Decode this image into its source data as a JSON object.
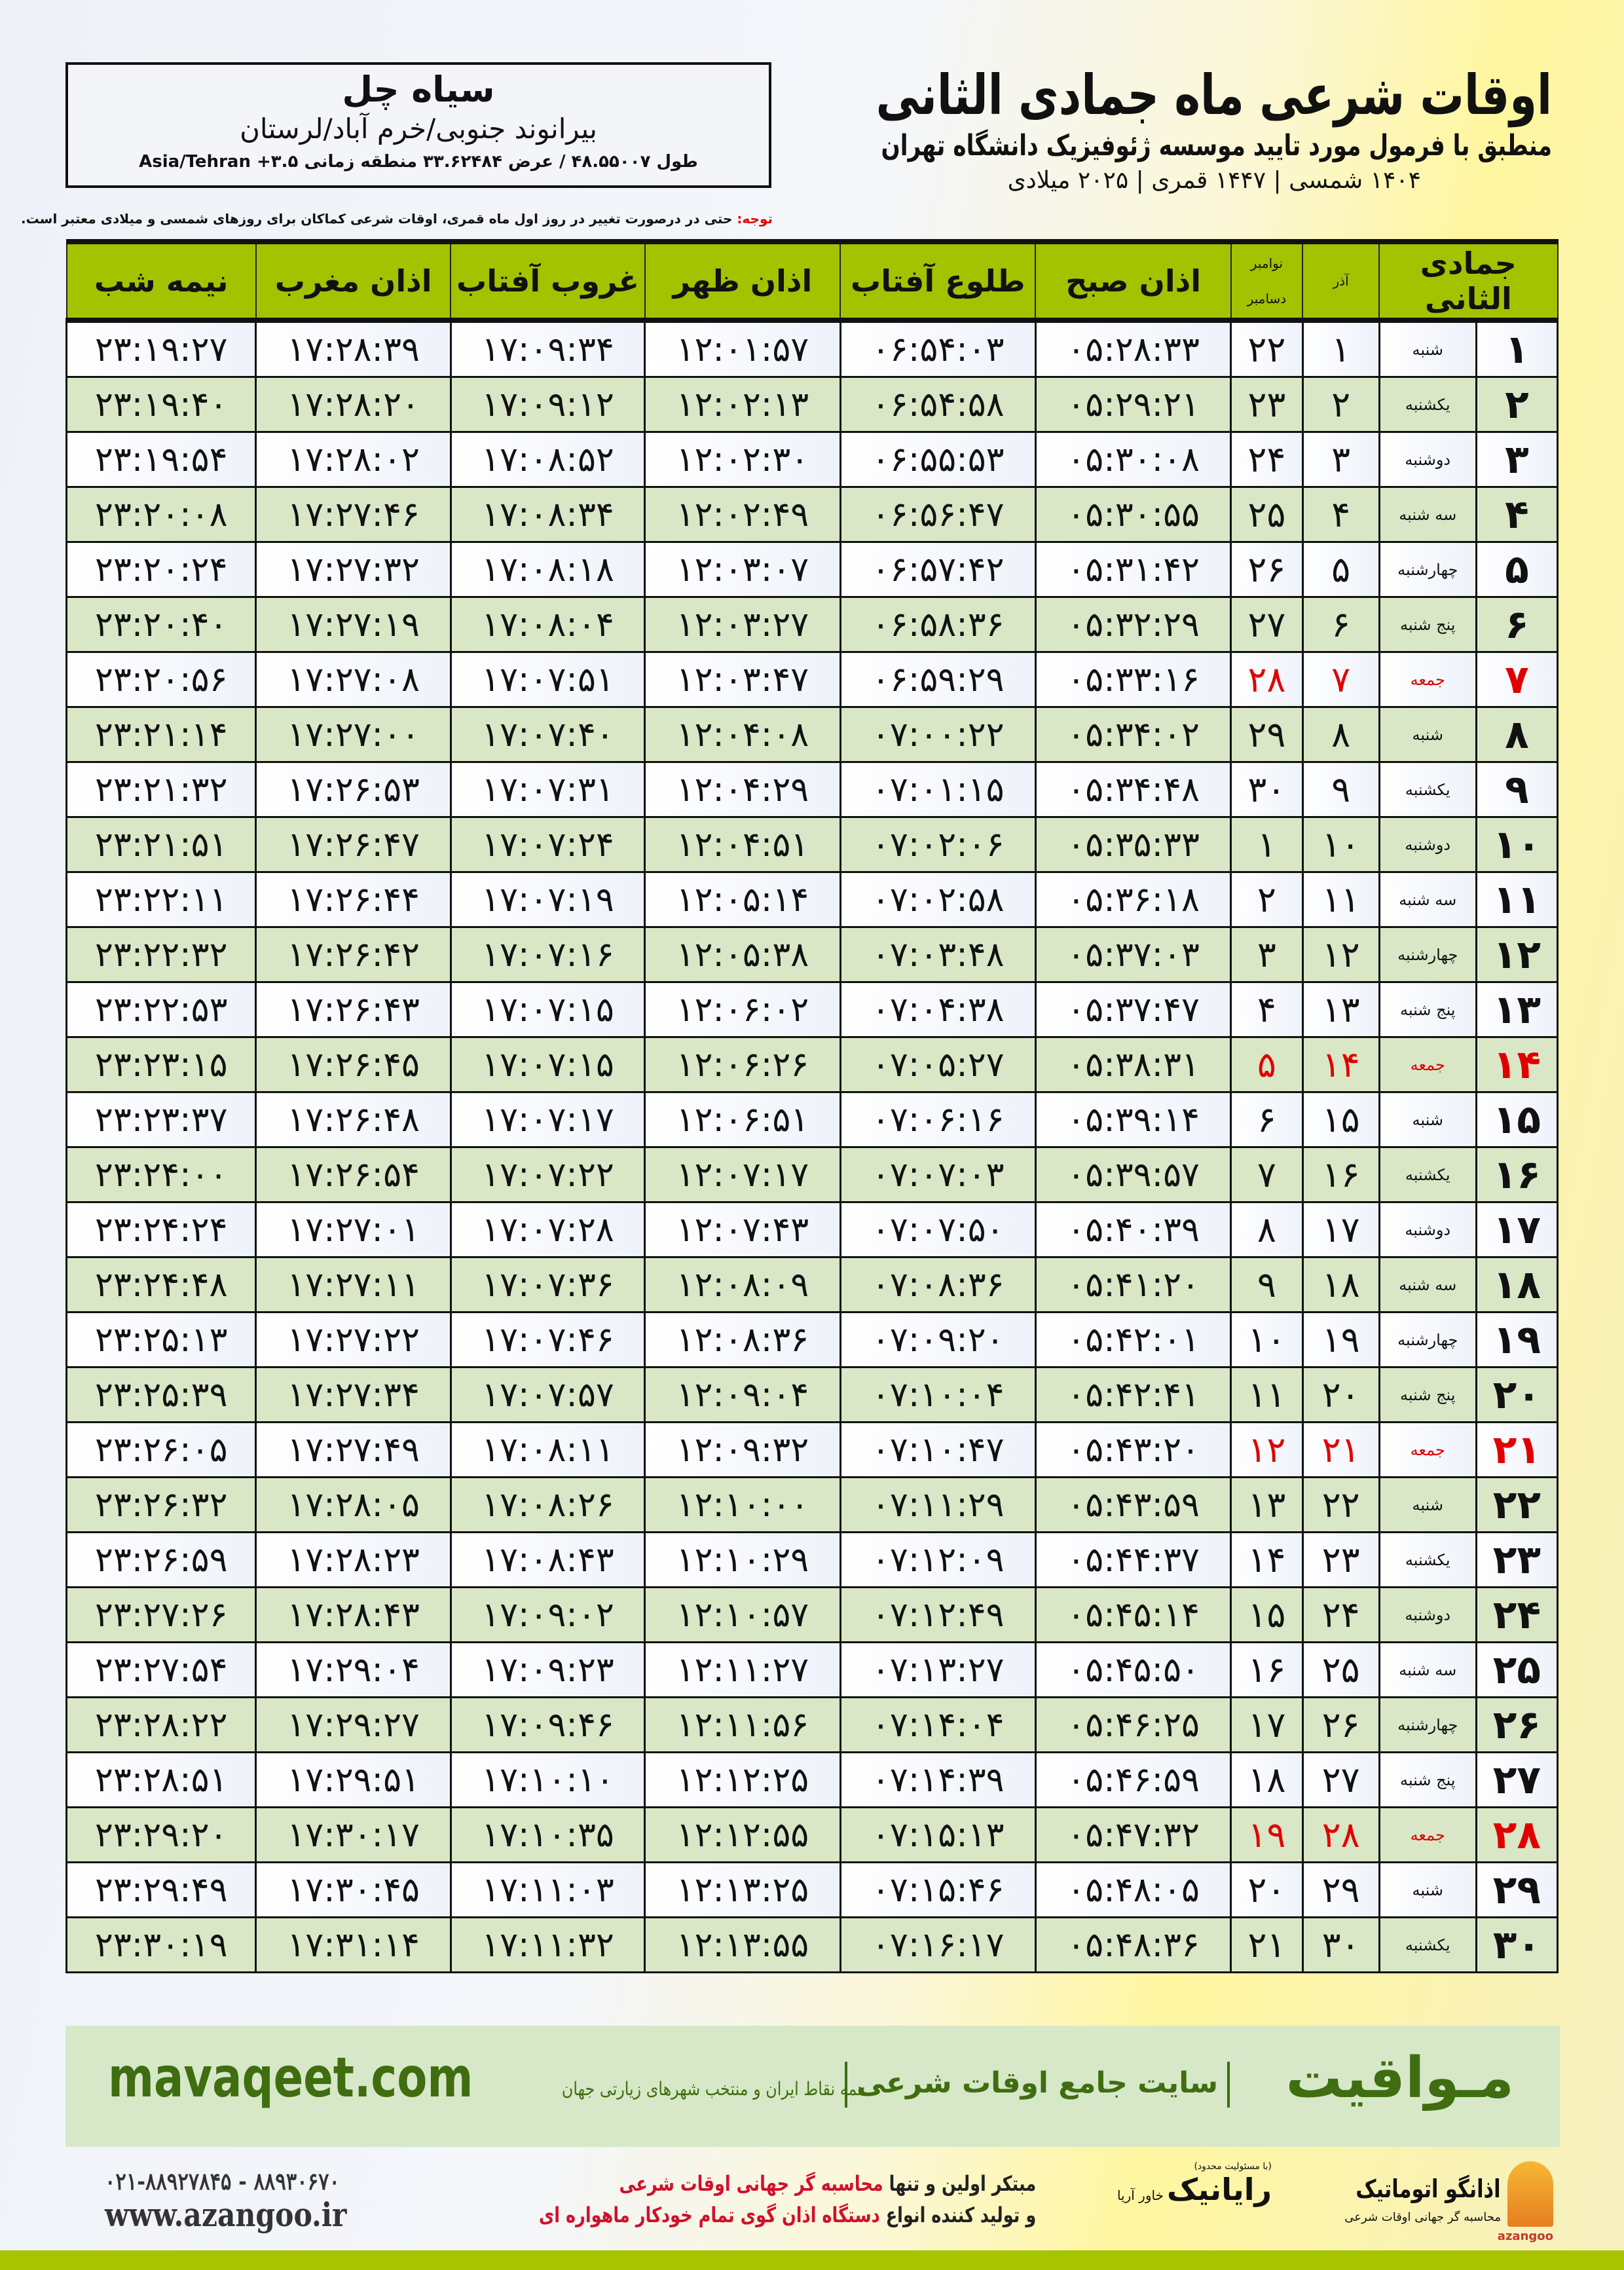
{
  "info": {
    "city": "سیاه چل",
    "region": "بیرانوند جنوبی/خرم آباد/لرستان",
    "coords": "طول ۴۸.۵۵۰۰۷ / عرض ۳۳.۶۲۴۸۴ منطقه زمانی ۳.۵+ Asia/Tehran"
  },
  "title": {
    "main": "اوقات شرعی ماه جمادی الثانی",
    "sub": "منطبق با فرمول مورد تایید موسسه ژئوفیزیک دانشگاه تهران",
    "years": "۱۴۰۴ شمسی | ۱۴۴۷ قمری | ۲۰۲۵ میلادی"
  },
  "note": {
    "label": "توجه:",
    "text": " حتی در درصورت تغییر در روز اول ماه قمری، اوقات شرعی کماکان برای روزهای شمسی و میلادی معتبر است."
  },
  "table": {
    "headers": {
      "month": "جمادی الثانی",
      "azar": "آذر",
      "november": "نوامبر",
      "december": "دسامبر",
      "sobh": "اذان صبح",
      "tolu": "طلوع آفتاب",
      "zohr": "اذان ظهر",
      "ghorub": "غروب آفتاب",
      "maghrib": "اذان مغرب",
      "nimeshab": "نیمه شب"
    },
    "holiday_color": "#e00000",
    "header_color": "#a3c200",
    "rows": [
      {
        "day": "۱",
        "weekday": "شنبه",
        "azar": "۱",
        "greg": "۲۲",
        "sobh": "۰۵:۲۸:۳۳",
        "tolu": "۰۶:۵۴:۰۳",
        "zohr": "۱۲:۰۱:۵۷",
        "ghorub": "۱۷:۰۹:۳۴",
        "maghrib": "۱۷:۲۸:۳۹",
        "nimeshab": "۲۳:۱۹:۲۷"
      },
      {
        "day": "۲",
        "weekday": "یکشنبه",
        "azar": "۲",
        "greg": "۲۳",
        "sobh": "۰۵:۲۹:۲۱",
        "tolu": "۰۶:۵۴:۵۸",
        "zohr": "۱۲:۰۲:۱۳",
        "ghorub": "۱۷:۰۹:۱۲",
        "maghrib": "۱۷:۲۸:۲۰",
        "nimeshab": "۲۳:۱۹:۴۰"
      },
      {
        "day": "۳",
        "weekday": "دوشنبه",
        "azar": "۳",
        "greg": "۲۴",
        "sobh": "۰۵:۳۰:۰۸",
        "tolu": "۰۶:۵۵:۵۳",
        "zohr": "۱۲:۰۲:۳۰",
        "ghorub": "۱۷:۰۸:۵۲",
        "maghrib": "۱۷:۲۸:۰۲",
        "nimeshab": "۲۳:۱۹:۵۴"
      },
      {
        "day": "۴",
        "weekday": "سه شنبه",
        "azar": "۴",
        "greg": "۲۵",
        "sobh": "۰۵:۳۰:۵۵",
        "tolu": "۰۶:۵۶:۴۷",
        "zohr": "۱۲:۰۲:۴۹",
        "ghorub": "۱۷:۰۸:۳۴",
        "maghrib": "۱۷:۲۷:۴۶",
        "nimeshab": "۲۳:۲۰:۰۸"
      },
      {
        "day": "۵",
        "weekday": "چهارشنبه",
        "azar": "۵",
        "greg": "۲۶",
        "sobh": "۰۵:۳۱:۴۲",
        "tolu": "۰۶:۵۷:۴۲",
        "zohr": "۱۲:۰۳:۰۷",
        "ghorub": "۱۷:۰۸:۱۸",
        "maghrib": "۱۷:۲۷:۳۲",
        "nimeshab": "۲۳:۲۰:۲۴"
      },
      {
        "day": "۶",
        "weekday": "پنج شنبه",
        "azar": "۶",
        "greg": "۲۷",
        "sobh": "۰۵:۳۲:۲۹",
        "tolu": "۰۶:۵۸:۳۶",
        "zohr": "۱۲:۰۳:۲۷",
        "ghorub": "۱۷:۰۸:۰۴",
        "maghrib": "۱۷:۲۷:۱۹",
        "nimeshab": "۲۳:۲۰:۴۰"
      },
      {
        "day": "۷",
        "weekday": "جمعه",
        "azar": "۷",
        "greg": "۲۸",
        "sobh": "۰۵:۳۳:۱۶",
        "tolu": "۰۶:۵۹:۲۹",
        "zohr": "۱۲:۰۳:۴۷",
        "ghorub": "۱۷:۰۷:۵۱",
        "maghrib": "۱۷:۲۷:۰۸",
        "nimeshab": "۲۳:۲۰:۵۶",
        "holiday": true
      },
      {
        "day": "۸",
        "weekday": "شنبه",
        "azar": "۸",
        "greg": "۲۹",
        "sobh": "۰۵:۳۴:۰۲",
        "tolu": "۰۷:۰۰:۲۲",
        "zohr": "۱۲:۰۴:۰۸",
        "ghorub": "۱۷:۰۷:۴۰",
        "maghrib": "۱۷:۲۷:۰۰",
        "nimeshab": "۲۳:۲۱:۱۴"
      },
      {
        "day": "۹",
        "weekday": "یکشنبه",
        "azar": "۹",
        "greg": "۳۰",
        "sobh": "۰۵:۳۴:۴۸",
        "tolu": "۰۷:۰۱:۱۵",
        "zohr": "۱۲:۰۴:۲۹",
        "ghorub": "۱۷:۰۷:۳۱",
        "maghrib": "۱۷:۲۶:۵۳",
        "nimeshab": "۲۳:۲۱:۳۲"
      },
      {
        "day": "۱۰",
        "weekday": "دوشنبه",
        "azar": "۱۰",
        "greg": "۱",
        "sobh": "۰۵:۳۵:۳۳",
        "tolu": "۰۷:۰۲:۰۶",
        "zohr": "۱۲:۰۴:۵۱",
        "ghorub": "۱۷:۰۷:۲۴",
        "maghrib": "۱۷:۲۶:۴۷",
        "nimeshab": "۲۳:۲۱:۵۱"
      },
      {
        "day": "۱۱",
        "weekday": "سه شنبه",
        "azar": "۱۱",
        "greg": "۲",
        "sobh": "۰۵:۳۶:۱۸",
        "tolu": "۰۷:۰۲:۵۸",
        "zohr": "۱۲:۰۵:۱۴",
        "ghorub": "۱۷:۰۷:۱۹",
        "maghrib": "۱۷:۲۶:۴۴",
        "nimeshab": "۲۳:۲۲:۱۱"
      },
      {
        "day": "۱۲",
        "weekday": "چهارشنبه",
        "azar": "۱۲",
        "greg": "۳",
        "sobh": "۰۵:۳۷:۰۳",
        "tolu": "۰۷:۰۳:۴۸",
        "zohr": "۱۲:۰۵:۳۸",
        "ghorub": "۱۷:۰۷:۱۶",
        "maghrib": "۱۷:۲۶:۴۲",
        "nimeshab": "۲۳:۲۲:۳۲"
      },
      {
        "day": "۱۳",
        "weekday": "پنج شنبه",
        "azar": "۱۳",
        "greg": "۴",
        "sobh": "۰۵:۳۷:۴۷",
        "tolu": "۰۷:۰۴:۳۸",
        "zohr": "۱۲:۰۶:۰۲",
        "ghorub": "۱۷:۰۷:۱۵",
        "maghrib": "۱۷:۲۶:۴۳",
        "nimeshab": "۲۳:۲۲:۵۳"
      },
      {
        "day": "۱۴",
        "weekday": "جمعه",
        "azar": "۱۴",
        "greg": "۵",
        "sobh": "۰۵:۳۸:۳۱",
        "tolu": "۰۷:۰۵:۲۷",
        "zohr": "۱۲:۰۶:۲۶",
        "ghorub": "۱۷:۰۷:۱۵",
        "maghrib": "۱۷:۲۶:۴۵",
        "nimeshab": "۲۳:۲۳:۱۵",
        "holiday": true
      },
      {
        "day": "۱۵",
        "weekday": "شنبه",
        "azar": "۱۵",
        "greg": "۶",
        "sobh": "۰۵:۳۹:۱۴",
        "tolu": "۰۷:۰۶:۱۶",
        "zohr": "۱۲:۰۶:۵۱",
        "ghorub": "۱۷:۰۷:۱۷",
        "maghrib": "۱۷:۲۶:۴۸",
        "nimeshab": "۲۳:۲۳:۳۷"
      },
      {
        "day": "۱۶",
        "weekday": "یکشنبه",
        "azar": "۱۶",
        "greg": "۷",
        "sobh": "۰۵:۳۹:۵۷",
        "tolu": "۰۷:۰۷:۰۳",
        "zohr": "۱۲:۰۷:۱۷",
        "ghorub": "۱۷:۰۷:۲۲",
        "maghrib": "۱۷:۲۶:۵۴",
        "nimeshab": "۲۳:۲۴:۰۰"
      },
      {
        "day": "۱۷",
        "weekday": "دوشنبه",
        "azar": "۱۷",
        "greg": "۸",
        "sobh": "۰۵:۴۰:۳۹",
        "tolu": "۰۷:۰۷:۵۰",
        "zohr": "۱۲:۰۷:۴۳",
        "ghorub": "۱۷:۰۷:۲۸",
        "maghrib": "۱۷:۲۷:۰۱",
        "nimeshab": "۲۳:۲۴:۲۴"
      },
      {
        "day": "۱۸",
        "weekday": "سه شنبه",
        "azar": "۱۸",
        "greg": "۹",
        "sobh": "۰۵:۴۱:۲۰",
        "tolu": "۰۷:۰۸:۳۶",
        "zohr": "۱۲:۰۸:۰۹",
        "ghorub": "۱۷:۰۷:۳۶",
        "maghrib": "۱۷:۲۷:۱۱",
        "nimeshab": "۲۳:۲۴:۴۸"
      },
      {
        "day": "۱۹",
        "weekday": "چهارشنبه",
        "azar": "۱۹",
        "greg": "۱۰",
        "sobh": "۰۵:۴۲:۰۱",
        "tolu": "۰۷:۰۹:۲۰",
        "zohr": "۱۲:۰۸:۳۶",
        "ghorub": "۱۷:۰۷:۴۶",
        "maghrib": "۱۷:۲۷:۲۲",
        "nimeshab": "۲۳:۲۵:۱۳"
      },
      {
        "day": "۲۰",
        "weekday": "پنج شنبه",
        "azar": "۲۰",
        "greg": "۱۱",
        "sobh": "۰۵:۴۲:۴۱",
        "tolu": "۰۷:۱۰:۰۴",
        "zohr": "۱۲:۰۹:۰۴",
        "ghorub": "۱۷:۰۷:۵۷",
        "maghrib": "۱۷:۲۷:۳۴",
        "nimeshab": "۲۳:۲۵:۳۹"
      },
      {
        "day": "۲۱",
        "weekday": "جمعه",
        "azar": "۲۱",
        "greg": "۱۲",
        "sobh": "۰۵:۴۳:۲۰",
        "tolu": "۰۷:۱۰:۴۷",
        "zohr": "۱۲:۰۹:۳۲",
        "ghorub": "۱۷:۰۸:۱۱",
        "maghrib": "۱۷:۲۷:۴۹",
        "nimeshab": "۲۳:۲۶:۰۵",
        "holiday": true
      },
      {
        "day": "۲۲",
        "weekday": "شنبه",
        "azar": "۲۲",
        "greg": "۱۳",
        "sobh": "۰۵:۴۳:۵۹",
        "tolu": "۰۷:۱۱:۲۹",
        "zohr": "۱۲:۱۰:۰۰",
        "ghorub": "۱۷:۰۸:۲۶",
        "maghrib": "۱۷:۲۸:۰۵",
        "nimeshab": "۲۳:۲۶:۳۲"
      },
      {
        "day": "۲۳",
        "weekday": "یکشنبه",
        "azar": "۲۳",
        "greg": "۱۴",
        "sobh": "۰۵:۴۴:۳۷",
        "tolu": "۰۷:۱۲:۰۹",
        "zohr": "۱۲:۱۰:۲۹",
        "ghorub": "۱۷:۰۸:۴۳",
        "maghrib": "۱۷:۲۸:۲۳",
        "nimeshab": "۲۳:۲۶:۵۹"
      },
      {
        "day": "۲۴",
        "weekday": "دوشنبه",
        "azar": "۲۴",
        "greg": "۱۵",
        "sobh": "۰۵:۴۵:۱۴",
        "tolu": "۰۷:۱۲:۴۹",
        "zohr": "۱۲:۱۰:۵۷",
        "ghorub": "۱۷:۰۹:۰۲",
        "maghrib": "۱۷:۲۸:۴۳",
        "nimeshab": "۲۳:۲۷:۲۶"
      },
      {
        "day": "۲۵",
        "weekday": "سه شنبه",
        "azar": "۲۵",
        "greg": "۱۶",
        "sobh": "۰۵:۴۵:۵۰",
        "tolu": "۰۷:۱۳:۲۷",
        "zohr": "۱۲:۱۱:۲۷",
        "ghorub": "۱۷:۰۹:۲۳",
        "maghrib": "۱۷:۲۹:۰۴",
        "nimeshab": "۲۳:۲۷:۵۴"
      },
      {
        "day": "۲۶",
        "weekday": "چهارشنبه",
        "azar": "۲۶",
        "greg": "۱۷",
        "sobh": "۰۵:۴۶:۲۵",
        "tolu": "۰۷:۱۴:۰۴",
        "zohr": "۱۲:۱۱:۵۶",
        "ghorub": "۱۷:۰۹:۴۶",
        "maghrib": "۱۷:۲۹:۲۷",
        "nimeshab": "۲۳:۲۸:۲۲"
      },
      {
        "day": "۲۷",
        "weekday": "پنج شنبه",
        "azar": "۲۷",
        "greg": "۱۸",
        "sobh": "۰۵:۴۶:۵۹",
        "tolu": "۰۷:۱۴:۳۹",
        "zohr": "۱۲:۱۲:۲۵",
        "ghorub": "۱۷:۱۰:۱۰",
        "maghrib": "۱۷:۲۹:۵۱",
        "nimeshab": "۲۳:۲۸:۵۱"
      },
      {
        "day": "۲۸",
        "weekday": "جمعه",
        "azar": "۲۸",
        "greg": "۱۹",
        "sobh": "۰۵:۴۷:۳۲",
        "tolu": "۰۷:۱۵:۱۳",
        "zohr": "۱۲:۱۲:۵۵",
        "ghorub": "۱۷:۱۰:۳۵",
        "maghrib": "۱۷:۳۰:۱۷",
        "nimeshab": "۲۳:۲۹:۲۰",
        "holiday": true
      },
      {
        "day": "۲۹",
        "weekday": "شنبه",
        "azar": "۲۹",
        "greg": "۲۰",
        "sobh": "۰۵:۴۸:۰۵",
        "tolu": "۰۷:۱۵:۴۶",
        "zohr": "۱۲:۱۳:۲۵",
        "ghorub": "۱۷:۱۱:۰۳",
        "maghrib": "۱۷:۳۰:۴۵",
        "nimeshab": "۲۳:۲۹:۴۹"
      },
      {
        "day": "۳۰",
        "weekday": "یکشنبه",
        "azar": "۳۰",
        "greg": "۲۱",
        "sobh": "۰۵:۴۸:۳۶",
        "tolu": "۰۷:۱۶:۱۷",
        "zohr": "۱۲:۱۳:۵۵",
        "ghorub": "۱۷:۱۱:۳۲",
        "maghrib": "۱۷:۳۱:۱۴",
        "nimeshab": "۲۳:۳۰:۱۹"
      }
    ]
  },
  "footer": {
    "brand": "مـواقیت",
    "slogan": "سایت جامع اوقات شرعی",
    "slogan_sub": "همه نقاط ایران و منتخب شهرهای زیارتی جهان",
    "site": "mavaqeet.com",
    "brand_color": "#3f6d10",
    "azangoo_name": "اذانگو اتوماتیک",
    "azangoo_sub": "محاسبه گر جهانی اوقات شرعی",
    "azangoo_en": "azangoo",
    "rayanik_tag": "(با مسئولیت محدود)",
    "rayanik_name": "رایانیک",
    "rayanik_sub": "خاور آریا",
    "promo_line1_a": "مبتکر اولین و تنها ",
    "promo_line1_b": "محاسبه گر جهانی اوقات شرعی",
    "promo_line2_a": "و تولید کننده انواع ",
    "promo_line2_b": "دستگاه اذان گوی تمام خودکار ماهواره ای",
    "phone": "۰۲۱-۸۸۹۲۷۸۴۵ - ۸۸۹۳۰۶۷۰",
    "web": "www.azangoo.ir"
  }
}
